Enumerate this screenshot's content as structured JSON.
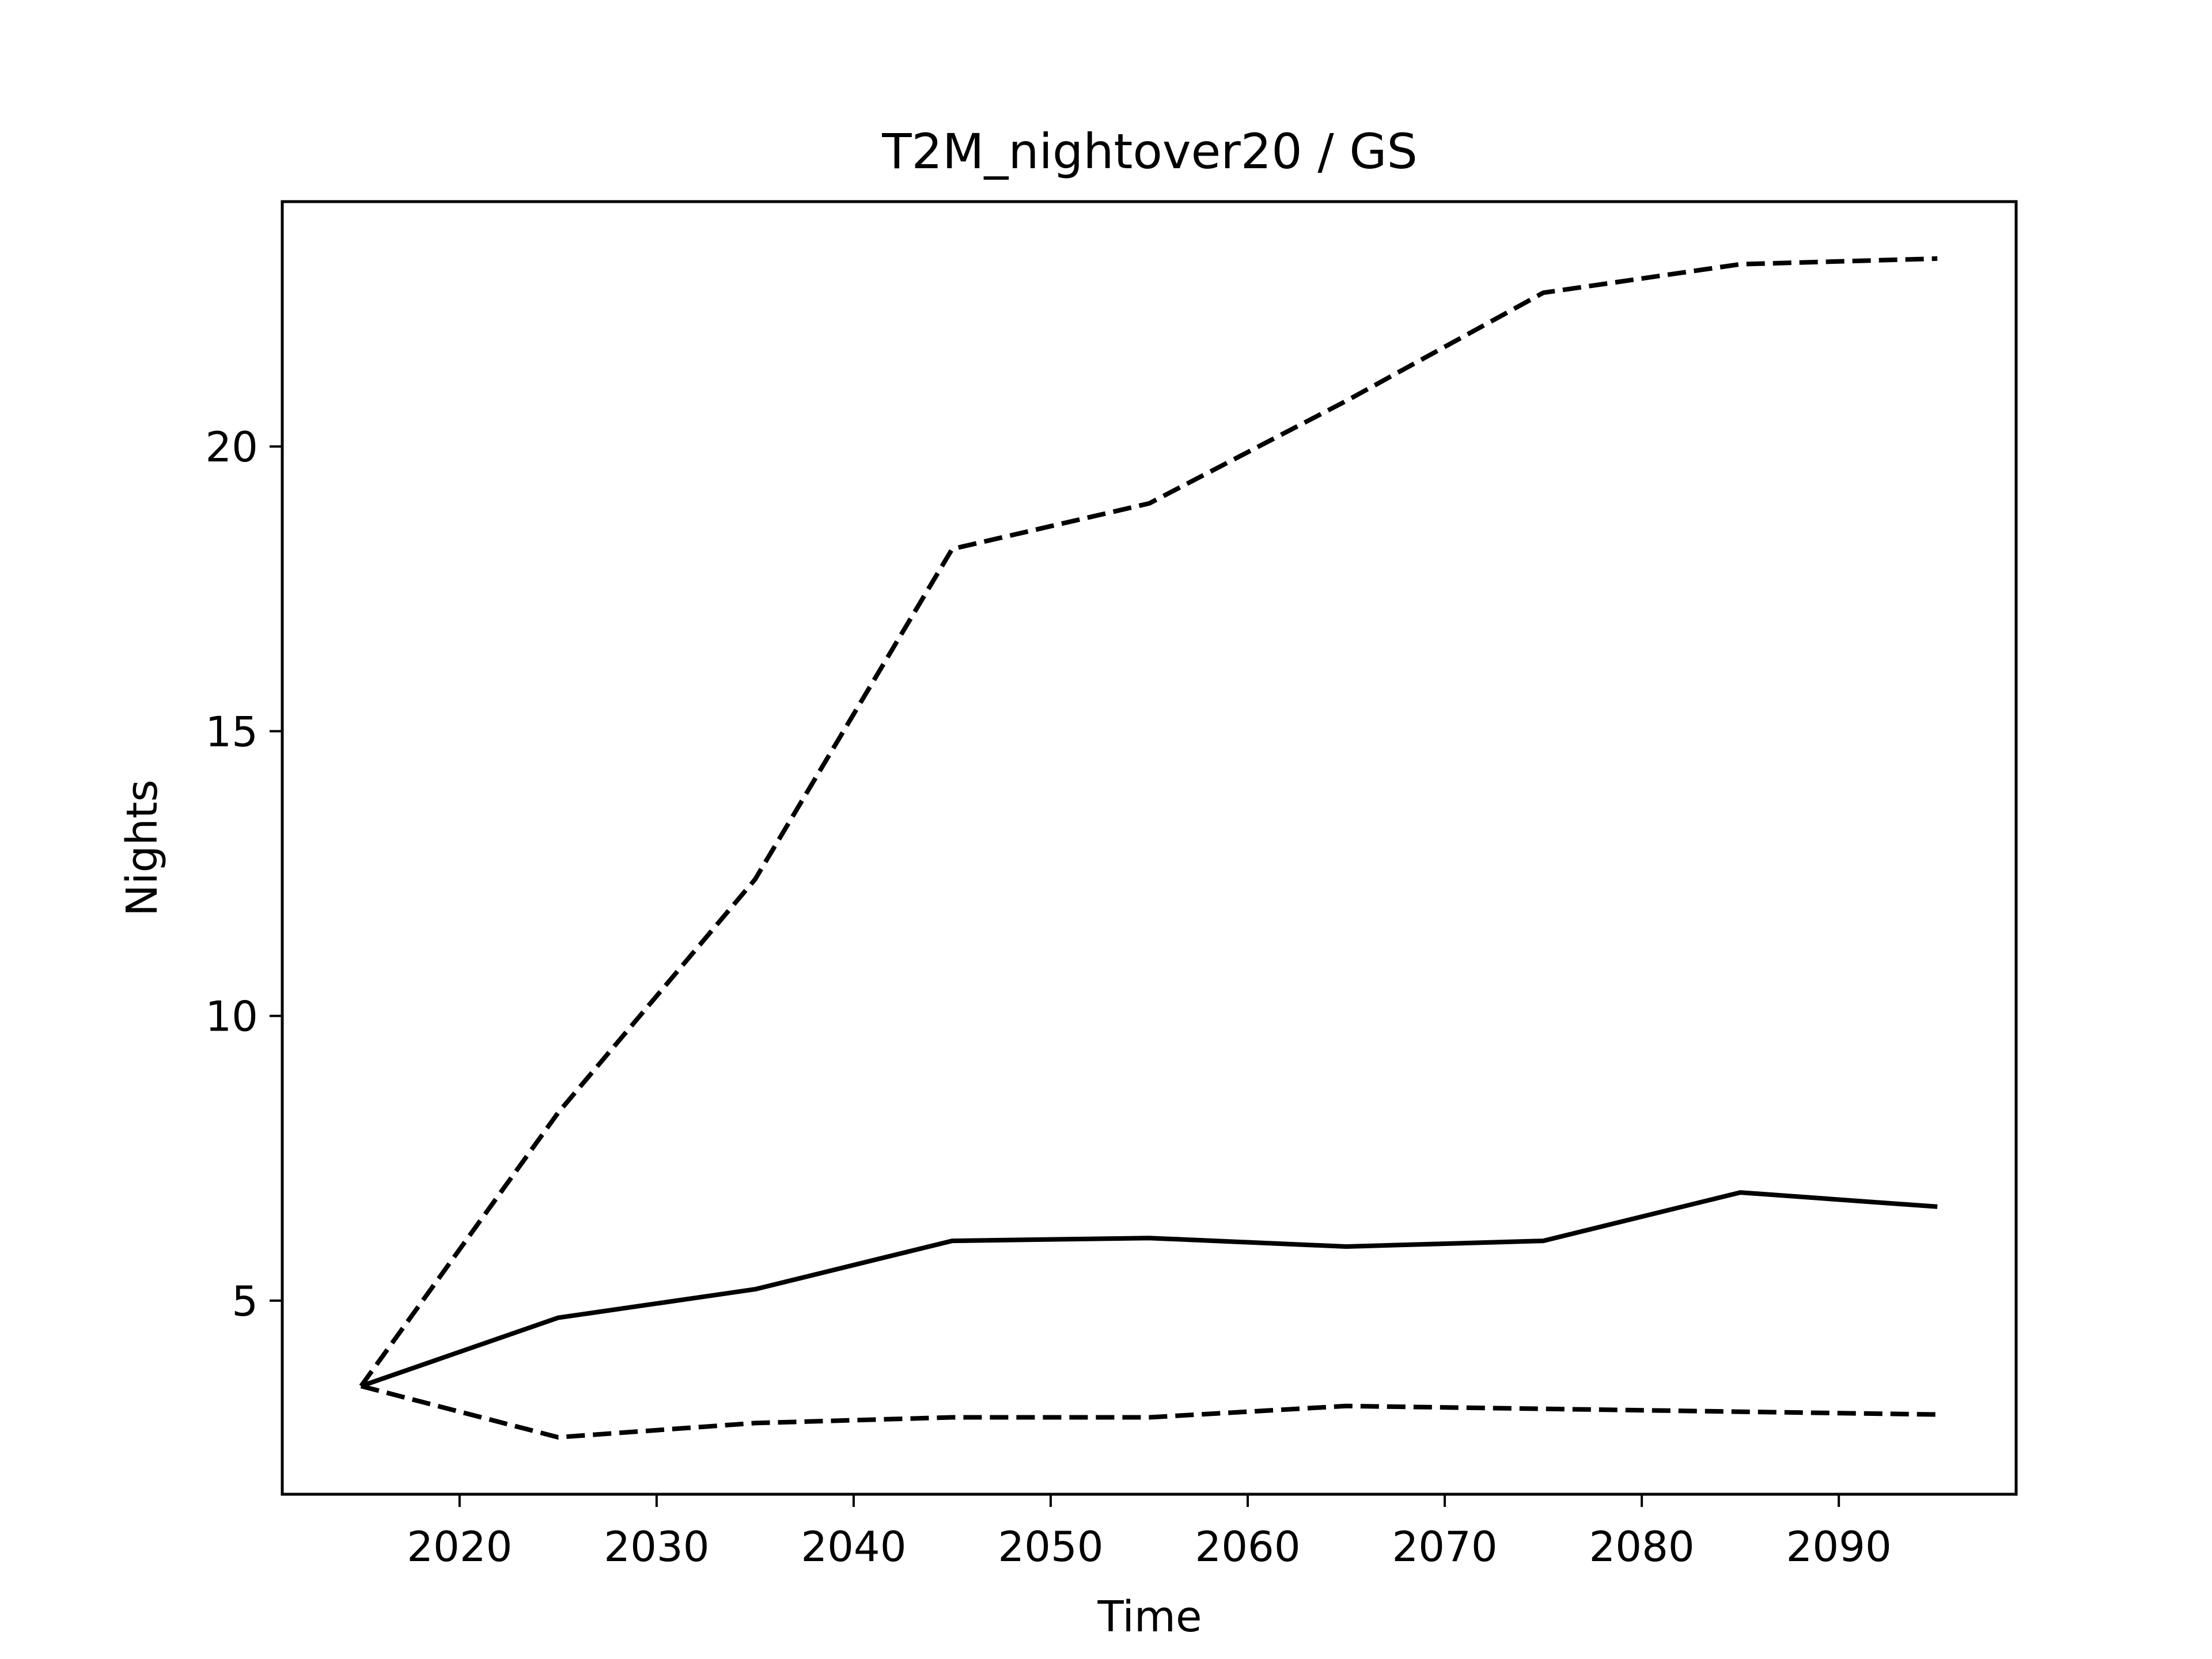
{
  "chart_data": {
    "type": "line",
    "title": "T2M_nightover20 / GS",
    "xlabel": "Time",
    "ylabel": "Nights",
    "xlim": [
      2011,
      2099
    ],
    "ylim": [
      1.6,
      24.3
    ],
    "x": [
      2015,
      2025,
      2035,
      2045,
      2055,
      2065,
      2075,
      2085,
      2095
    ],
    "xticks": [
      2020,
      2030,
      2040,
      2050,
      2060,
      2070,
      2080,
      2090
    ],
    "xtick_labels": [
      "2020",
      "2030",
      "2040",
      "2050",
      "2060",
      "2070",
      "2080",
      "2090"
    ],
    "yticks": [
      5,
      10,
      15,
      20
    ],
    "ytick_labels": [
      "5",
      "10",
      "15",
      "20"
    ],
    "grid": false,
    "series": [
      {
        "style": "dashed",
        "color": "#000000",
        "values": [
          3.5,
          8.3,
          12.4,
          18.2,
          19.0,
          20.8,
          22.7,
          23.2,
          23.3
        ]
      },
      {
        "style": "solid",
        "color": "#000000",
        "values": [
          3.5,
          4.7,
          5.2,
          6.05,
          6.1,
          5.95,
          6.05,
          6.9,
          6.65
        ]
      },
      {
        "style": "dashed",
        "color": "#000000",
        "values": [
          3.5,
          2.6,
          2.85,
          2.95,
          2.95,
          3.15,
          3.1,
          3.05,
          3.0
        ]
      }
    ]
  }
}
